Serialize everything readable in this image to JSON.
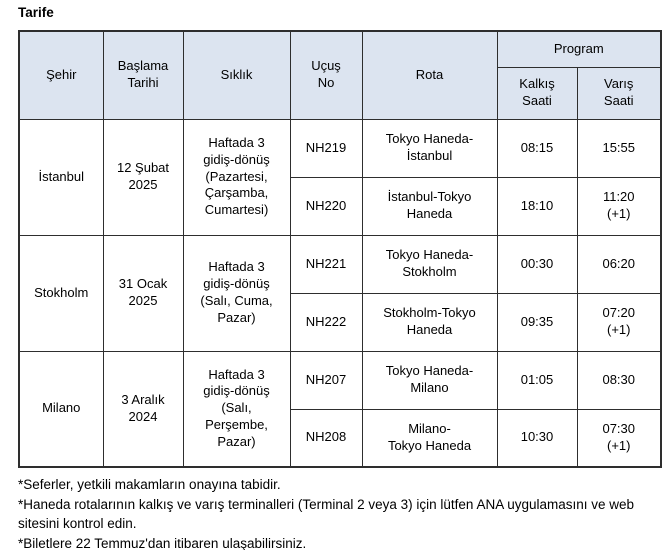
{
  "title": "Tarife",
  "colors": {
    "header_bg": "#dce4f0",
    "border": "#2e2e2e",
    "text": "#000000",
    "page_bg": "#ffffff"
  },
  "table": {
    "headers": {
      "city": "Şehir",
      "start_date": "Başlama\nTarihi",
      "frequency": "Sıklık",
      "flight_no": "Uçuş\nNo",
      "route": "Rota",
      "program": "Program",
      "departure": "Kalkış\nSaati",
      "arrival": "Varış\nSaati"
    },
    "rows": [
      {
        "city": "İstanbul",
        "start_date": "12 Şubat\n2025",
        "frequency": "Haftada 3\ngidiş-dönüş\n(Pazartesi,\nÇarşamba,\nCumartesi)",
        "flights": [
          {
            "flight_no": "NH219",
            "route": "Tokyo Haneda-\nİstanbul",
            "departure": "08:15",
            "arrival": "15:55"
          },
          {
            "flight_no": "NH220",
            "route": "İstanbul-Tokyo\nHaneda",
            "departure": "18:10",
            "arrival": "11:20\n(+1)"
          }
        ]
      },
      {
        "city": "Stokholm",
        "start_date": "31 Ocak\n2025",
        "frequency": "Haftada 3\ngidiş-dönüş\n(Salı, Cuma,\nPazar)",
        "flights": [
          {
            "flight_no": "NH221",
            "route": "Tokyo Haneda-\nStokholm",
            "departure": "00:30",
            "arrival": "06:20"
          },
          {
            "flight_no": "NH222",
            "route": "Stokholm-Tokyo\nHaneda",
            "departure": "09:35",
            "arrival": "07:20\n(+1)"
          }
        ]
      },
      {
        "city": "Milano",
        "start_date": "3 Aralık\n2024",
        "frequency": "Haftada 3\ngidiş-dönüş\n(Salı,\nPerşembe,\nPazar)",
        "flights": [
          {
            "flight_no": "NH207",
            "route": "Tokyo Haneda-\nMilano",
            "departure": "01:05",
            "arrival": "08:30"
          },
          {
            "flight_no": "NH208",
            "route": "Milano-\nTokyo Haneda",
            "departure": "10:30",
            "arrival": "07:30\n(+1)"
          }
        ]
      }
    ]
  },
  "footnotes": [
    "*Seferler, yetkili makamların onayına tabidir.",
    "*Haneda rotalarının kalkış ve varış terminalleri (Terminal 2 veya 3) için lütfen ANA uygulamasını ve web sitesini kontrol edin.",
    "*Biletlere 22 Temmuz'dan itibaren ulaşabilirsiniz."
  ]
}
